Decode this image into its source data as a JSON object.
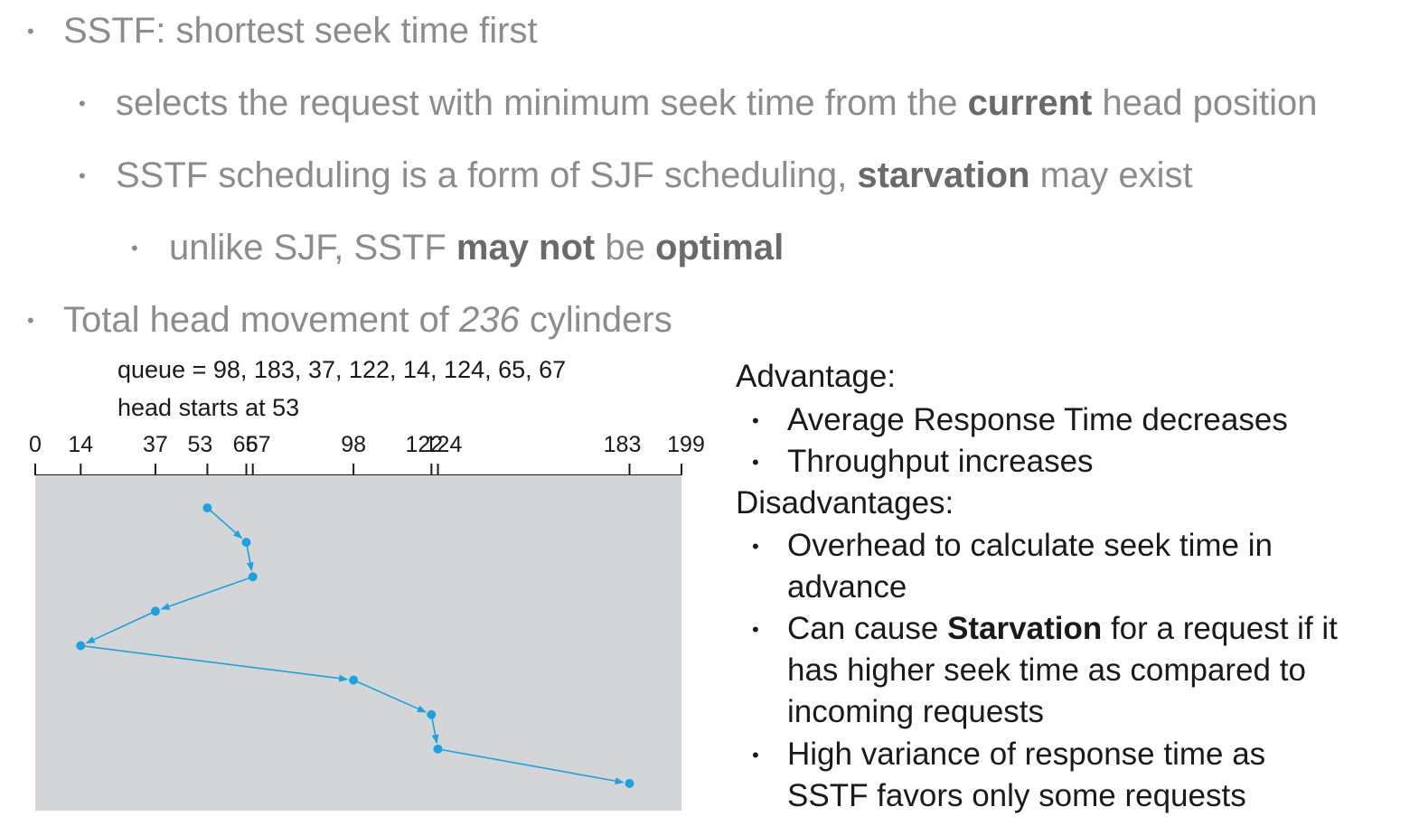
{
  "bullets": {
    "b1": "SSTF: shortest seek time first",
    "b2_pre": "selects the request with minimum seek time from the ",
    "b2_bold": "current",
    "b2_post": " head position",
    "b3_pre": "SSTF scheduling is a form of SJF scheduling, ",
    "b3_bold": "starvation",
    "b3_post": " may exist",
    "b4_pre": "unlike SJF, SSTF ",
    "b4_bold1": "may not",
    "b4_mid": " be ",
    "b4_bold2": "optimal",
    "b5_pre": "Total head movement of ",
    "b5_num": "236",
    "b5_post": " cylinders"
  },
  "diagram": {
    "queue_label": "queue = 98, 183, 37, 122, 14, 124, 65, 67",
    "head_label": "head starts at 53",
    "axis_min": 0,
    "axis_max": 199,
    "ticks": [
      0,
      14,
      37,
      53,
      65,
      67,
      98,
      122,
      124,
      183,
      199
    ],
    "tick_labels": [
      "0",
      "14",
      "37",
      "53",
      "65",
      "67",
      "98",
      "122",
      "124",
      "183",
      "199"
    ],
    "sequence": [
      53,
      65,
      67,
      37,
      14,
      98,
      122,
      124,
      183
    ],
    "line_color": "#1aa3e0",
    "panel_color": "#d4d5d7"
  },
  "notes": {
    "advantage_heading": "Advantage:",
    "adv1": "Average Response Time decreases",
    "adv2": "Throughput increases",
    "disadvantage_heading": "Disadvantages:",
    "dis1_a": "Overhead to calculate seek time in",
    "dis1_b": "advance",
    "dis2_pre": "Can cause ",
    "dis2_bold": "Starvation",
    "dis2_post": " for a request if it",
    "dis2_b": "has higher seek time as compared to",
    "dis2_c": "incoming requests",
    "dis3_a": "High variance of response time as",
    "dis3_b": "SSTF favors only some requests"
  }
}
